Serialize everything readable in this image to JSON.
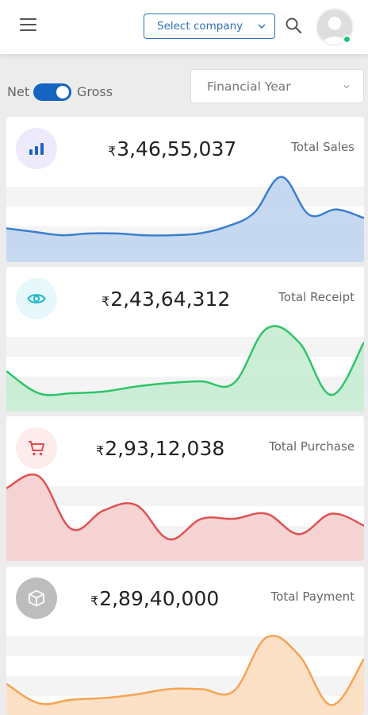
{
  "header": {
    "menu_icon": "hamburger-menu-icon",
    "company_select": {
      "value": "Select company",
      "icon": "chevron-down-icon"
    },
    "search_icon": "search-icon",
    "avatar": {
      "icon": "user-avatar-icon",
      "status": "online",
      "status_color": "#24c07a"
    }
  },
  "filters": {
    "net_label": "Net",
    "gross_label": "Gross",
    "toggle_on": true,
    "financial_year": {
      "placeholder": "Financial Year",
      "icon": "chevron-down-icon"
    }
  },
  "cards": [
    {
      "label": "Total Sales",
      "currency": "₹",
      "value": "3,46,55,037",
      "icon": "bar-chart-icon",
      "icon_bg": "#eeeafc",
      "icon_color": "#1e63c4",
      "line_color": "#3a7fcf",
      "fill_color": "#bcd2ee",
      "trend": [
        32,
        28,
        24,
        26,
        26,
        24,
        24,
        26,
        34,
        50,
        92,
        48,
        54,
        44
      ]
    },
    {
      "label": "Total Receipt",
      "currency": "₹",
      "value": "2,43,64,312",
      "icon": "eye-icon",
      "icon_bg": "#e6f8fb",
      "icon_color": "#1ab8c9",
      "line_color": "#2fc46a",
      "fill_color": "#c3ebd0",
      "trend": [
        40,
        14,
        14,
        16,
        22,
        26,
        28,
        26,
        90,
        74,
        12,
        74
      ]
    },
    {
      "label": "Total Purchase",
      "currency": "₹",
      "value": "2,93,12,038",
      "icon": "shopping-cart-icon",
      "icon_bg": "#fdeceb",
      "icon_color": "#e04b4b",
      "line_color": "#e05252",
      "fill_color": "#f6cccc",
      "trend": [
        78,
        92,
        30,
        52,
        58,
        18,
        42,
        42,
        48,
        24,
        48,
        34
      ]
    },
    {
      "label": "Total Payment",
      "currency": "₹",
      "value": "2,89,40,000",
      "icon": "package-icon",
      "icon_bg": "#bdbdbd",
      "icon_color": "#ffffff",
      "line_color": "#f4a455",
      "fill_color": "#fcdcbc",
      "trend": [
        28,
        6,
        10,
        12,
        16,
        22,
        22,
        20,
        80,
        60,
        4,
        56
      ]
    }
  ]
}
